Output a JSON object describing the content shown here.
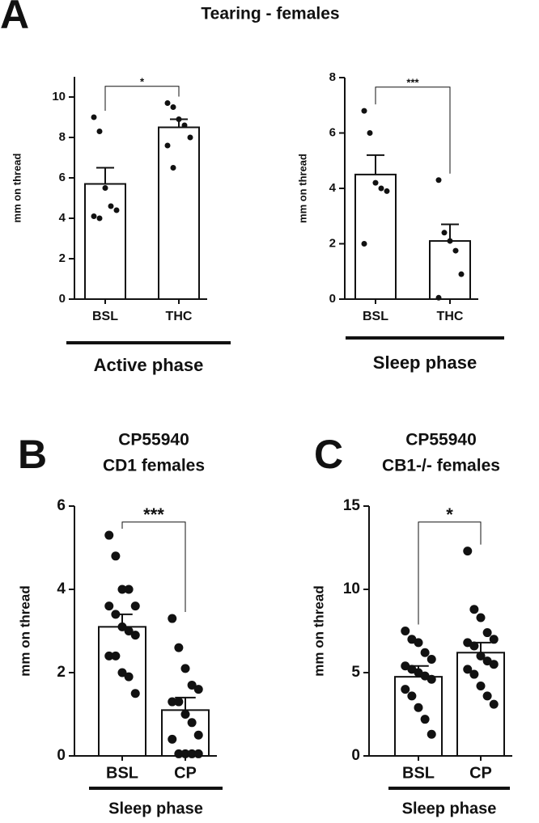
{
  "figure_title": "Tearing - females",
  "panel_label": "A",
  "chart_data": [
    {
      "type": "bar",
      "y_label": "mm on thread",
      "group_label": "Active phase",
      "categories": [
        "BSL",
        "THC"
      ],
      "values": [
        5.7,
        8.5
      ],
      "errors": [
        0.8,
        0.4
      ],
      "points": [
        [
          9.0,
          8.3,
          5.5,
          4.6,
          4.4,
          4.1,
          4.0
        ],
        [
          9.7,
          9.5,
          8.9,
          8.6,
          8.0,
          7.6,
          6.5
        ]
      ],
      "significance": "*",
      "color": "#ffffff",
      "ylim": [
        0,
        11
      ],
      "yticks": [
        0,
        2,
        4,
        6,
        8,
        10
      ]
    },
    {
      "type": "bar",
      "y_label": "mm on thread",
      "group_label": "Sleep phase",
      "categories": [
        "BSL",
        "THC"
      ],
      "values": [
        4.5,
        2.1
      ],
      "errors": [
        0.7,
        0.6
      ],
      "points": [
        [
          6.8,
          6.0,
          4.2,
          4.0,
          3.9,
          2.0
        ],
        [
          4.3,
          2.4,
          2.1,
          1.75,
          0.9,
          0.05
        ]
      ],
      "significance": "***",
      "color": "#ffffff",
      "ylim": [
        0,
        8
      ],
      "yticks": [
        0,
        2,
        4,
        6,
        8
      ]
    },
    {
      "type": "bar",
      "panel_label": "B",
      "title": "CP55940",
      "subtitle": "CD1 females",
      "y_label": "mm on thread",
      "group_label": "Sleep phase",
      "categories": [
        "BSL",
        "CP"
      ],
      "values": [
        3.1,
        1.1
      ],
      "errors": [
        0.3,
        0.3
      ],
      "points": [
        [
          5.3,
          4.8,
          4.0,
          4.0,
          3.6,
          3.6,
          3.4,
          3.1,
          3.0,
          2.9,
          2.4,
          2.4,
          2.0,
          1.9,
          1.5
        ],
        [
          3.3,
          2.6,
          2.1,
          1.7,
          1.6,
          1.3,
          1.3,
          1.0,
          0.8,
          0.5,
          0.4,
          0.05,
          0.05,
          0.05,
          0.05
        ]
      ],
      "significance": "***",
      "color": "#ffffff",
      "ylim": [
        0,
        6
      ],
      "yticks": [
        0,
        2,
        4,
        6
      ]
    },
    {
      "type": "bar",
      "panel_label": "C",
      "title": "CP55940",
      "subtitle": "CB1-/- females",
      "y_label": "mm on thread",
      "group_label": "Sleep phase",
      "categories": [
        "BSL",
        "CP"
      ],
      "values": [
        4.75,
        6.2
      ],
      "errors": [
        0.65,
        0.6
      ],
      "points": [
        [
          7.5,
          7.0,
          6.8,
          6.2,
          5.8,
          5.4,
          5.2,
          5.0,
          4.8,
          4.6,
          4.0,
          3.6,
          2.9,
          2.2,
          1.3
        ],
        [
          12.3,
          8.8,
          8.3,
          7.4,
          7.0,
          6.8,
          6.6,
          6.0,
          5.7,
          5.5,
          5.2,
          4.9,
          4.2,
          3.6,
          3.1
        ]
      ],
      "significance": "*",
      "color": "#ffffff",
      "ylim": [
        0,
        15
      ],
      "yticks": [
        0,
        5,
        10,
        15
      ]
    }
  ]
}
